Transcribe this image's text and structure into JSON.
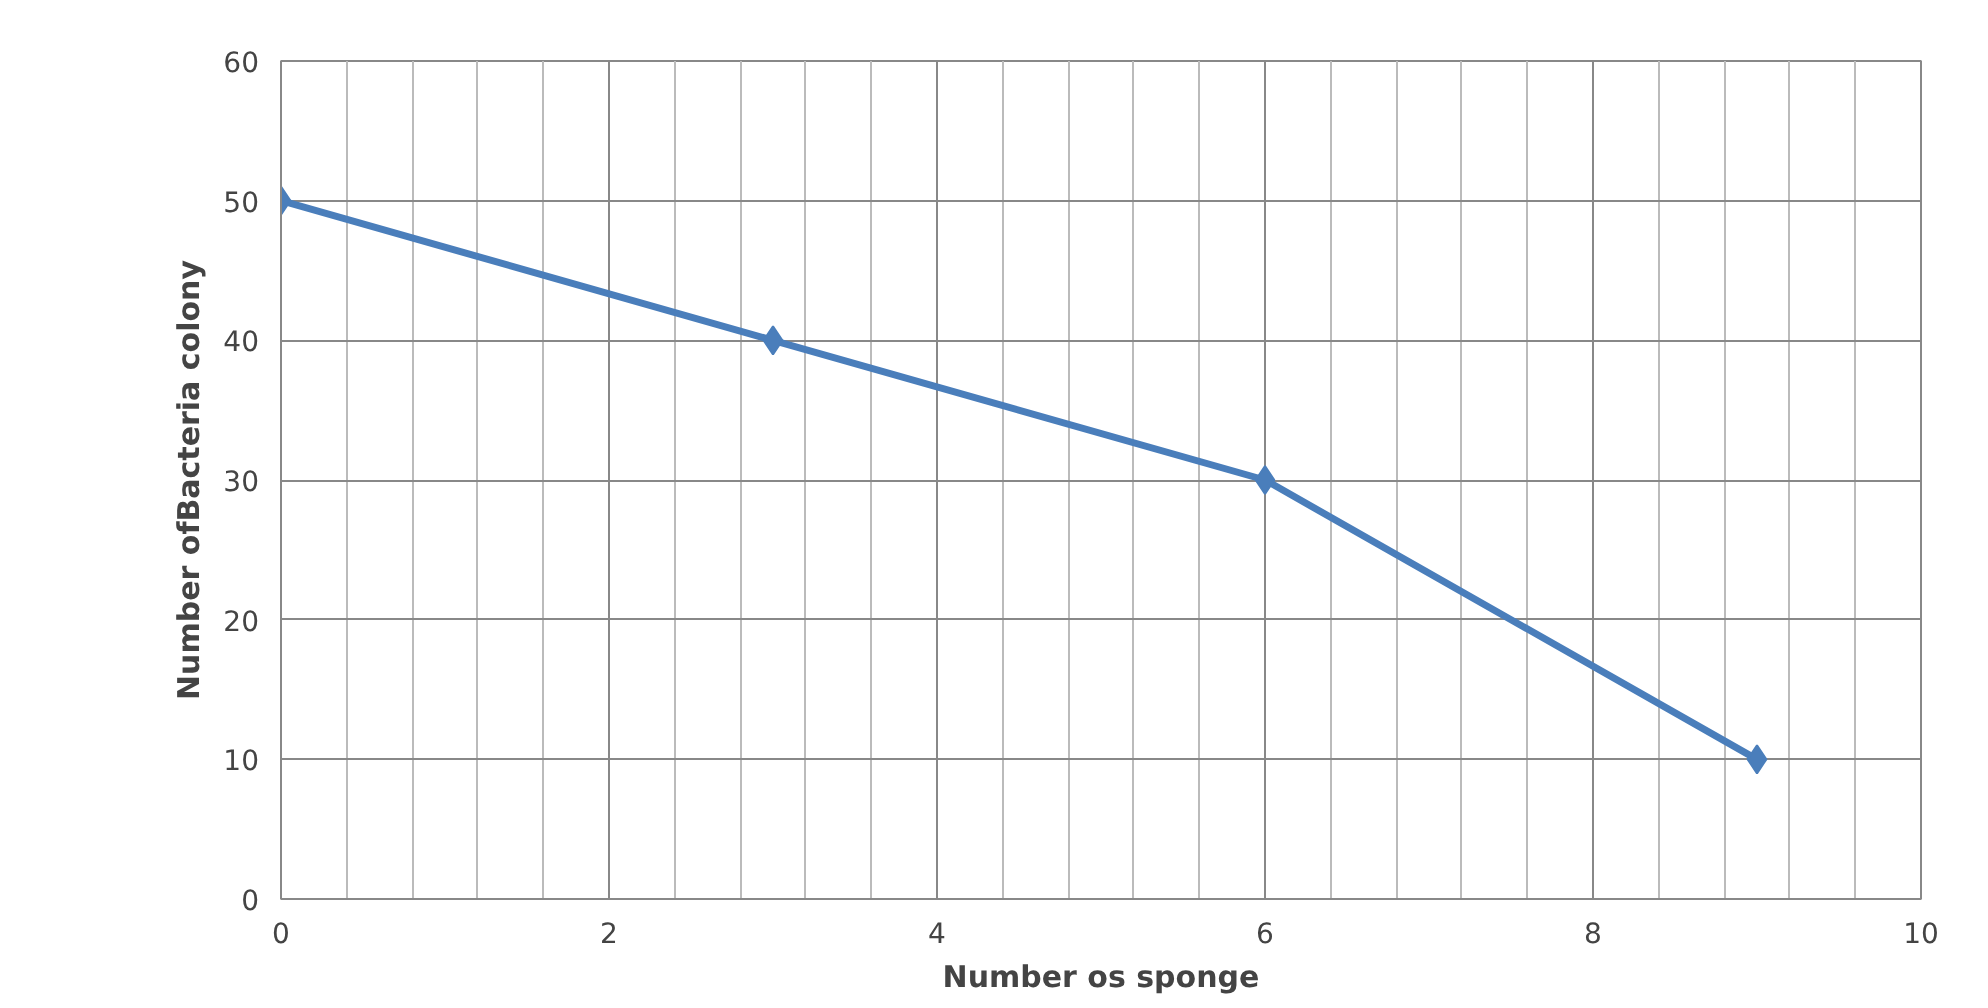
{
  "chart_data": {
    "type": "line",
    "xlabel": "Number os sponge",
    "ylabel": "Number ofBacteria colony",
    "x": [
      0,
      3,
      6,
      9
    ],
    "series": [
      {
        "color": "#4a7ebb",
        "values": [
          50,
          40,
          30,
          10
        ]
      }
    ],
    "xlim": [
      0,
      10
    ],
    "xticks": [
      0,
      2,
      4,
      6,
      8,
      10
    ],
    "ylim": [
      0,
      60
    ],
    "yticks": [
      0,
      10,
      20,
      30,
      40,
      50,
      60
    ],
    "grid": true,
    "marker": "diamond",
    "line_style": "solid"
  }
}
